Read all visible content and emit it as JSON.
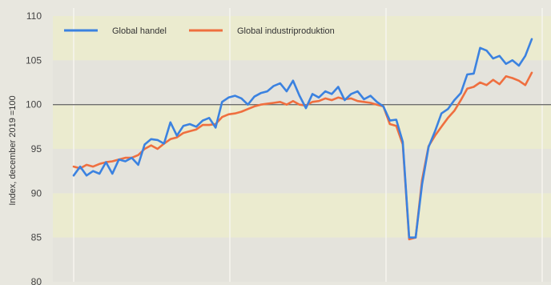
{
  "chart_data": {
    "type": "line",
    "ylabel": "Index, december 2019 =100",
    "ylim": [
      80,
      110
    ],
    "yticks": [
      80,
      85,
      90,
      95,
      100,
      105,
      110
    ],
    "reference_line": 100,
    "legend_position": "top-left",
    "grid": true,
    "series": [
      {
        "name": "Global handel",
        "color": "#3b82e0",
        "values": [
          92,
          93,
          92,
          92.5,
          92.2,
          93.5,
          92.2,
          93.8,
          93.6,
          94,
          93.2,
          95.5,
          96.1,
          96,
          95.6,
          98,
          96.5,
          97.6,
          97.8,
          97.5,
          98.2,
          98.5,
          97.4,
          100.3,
          100.8,
          101,
          100.7,
          100,
          100.9,
          101.3,
          101.5,
          102.1,
          102.4,
          101.5,
          102.7,
          101,
          99.6,
          101.2,
          100.8,
          101.5,
          101.2,
          102,
          100.5,
          101.2,
          101.5,
          100.6,
          101,
          100.3,
          99.8,
          98.2,
          98.3,
          95.8,
          85,
          85,
          91,
          95.2,
          97,
          99,
          99.5,
          100.5,
          101.3,
          103.4,
          103.5,
          106.4,
          106.1,
          105.2,
          105.5,
          104.6,
          105,
          104.4,
          105.5,
          107.4
        ]
      },
      {
        "name": "Global industriproduktion",
        "color": "#ef6f3f",
        "values": [
          93,
          92.8,
          93.2,
          93,
          93.3,
          93.5,
          93.6,
          93.8,
          94,
          94,
          94.3,
          95,
          95.4,
          95,
          95.6,
          96.1,
          96.3,
          96.8,
          97,
          97.2,
          97.7,
          97.7,
          97.8,
          98.6,
          98.9,
          99,
          99.2,
          99.5,
          99.8,
          100,
          100.1,
          100.2,
          100.3,
          100,
          100.4,
          100,
          99.9,
          100.3,
          100.4,
          100.7,
          100.5,
          100.8,
          100.6,
          100.7,
          100.4,
          100.3,
          100.2,
          100,
          99.8,
          97.8,
          97.6,
          95.5,
          84.8,
          85,
          91.5,
          95.3,
          96.5,
          97.5,
          98.5,
          99.3,
          100.5,
          101.8,
          102,
          102.5,
          102.2,
          102.8,
          102.3,
          103.2,
          103,
          102.7,
          102.2,
          103.6
        ]
      }
    ]
  }
}
